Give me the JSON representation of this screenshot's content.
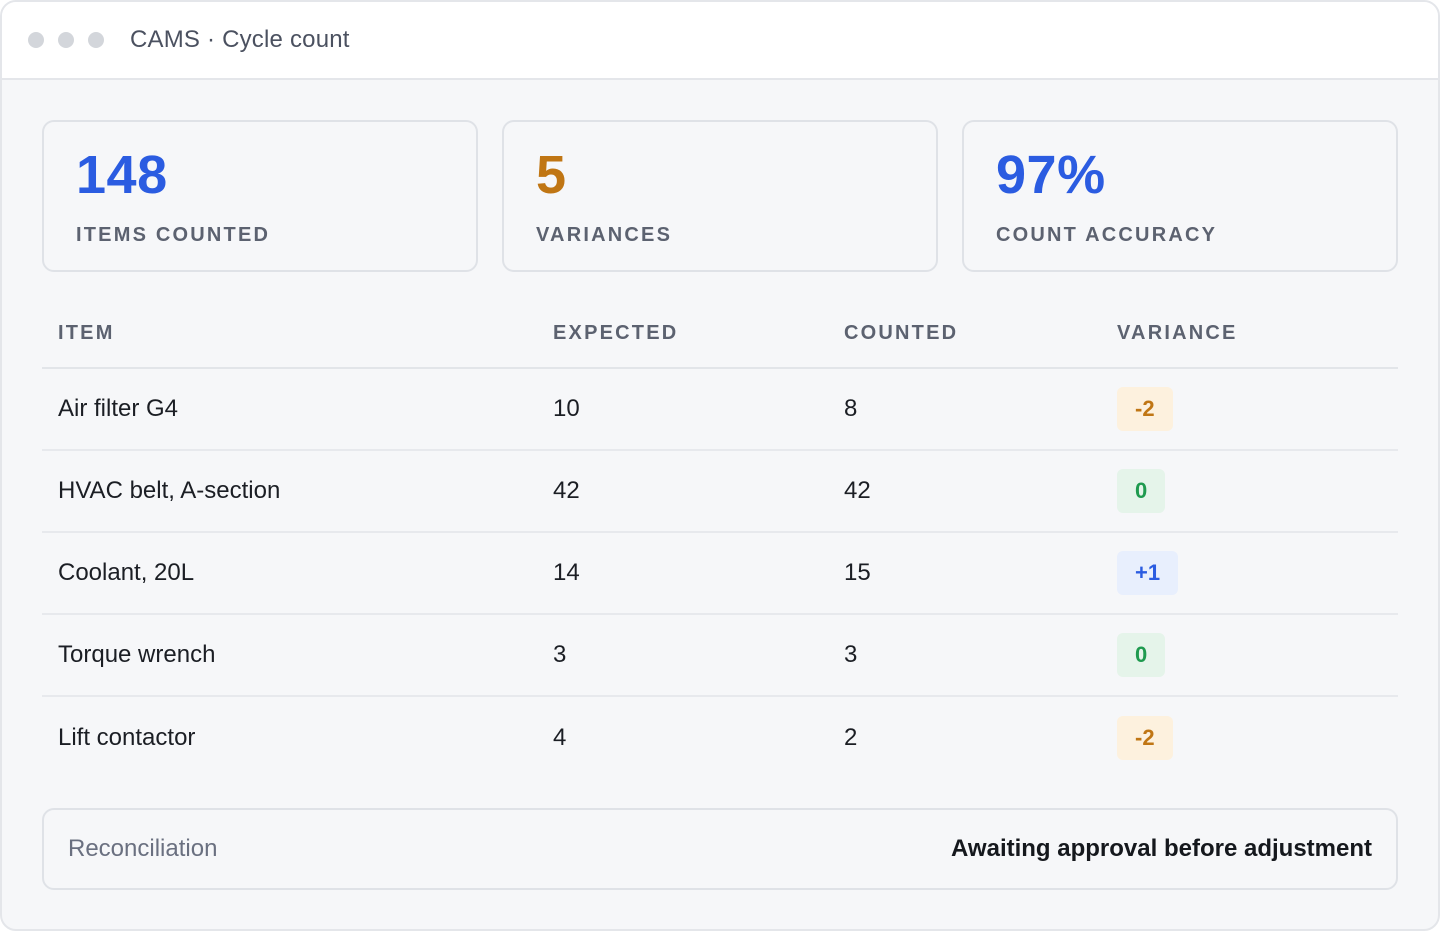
{
  "window": {
    "title": "CAMS · Cycle count"
  },
  "stats": [
    {
      "value": "148",
      "label": "ITEMS COUNTED",
      "color": "#2b5ce1"
    },
    {
      "value": "5",
      "label": "VARIANCES",
      "color": "#c07614"
    },
    {
      "value": "97%",
      "label": "COUNT ACCURACY",
      "color": "#2b5ce1"
    }
  ],
  "table": {
    "headers": [
      "ITEM",
      "EXPECTED",
      "COUNTED",
      "VARIANCE"
    ],
    "rows": [
      {
        "item": "Air filter G4",
        "expected": "10",
        "counted": "8",
        "variance": "-2",
        "kind": "negative"
      },
      {
        "item": "HVAC belt, A-section",
        "expected": "42",
        "counted": "42",
        "variance": "0",
        "kind": "zero"
      },
      {
        "item": "Coolant, 20L",
        "expected": "14",
        "counted": "15",
        "variance": "+1",
        "kind": "positive"
      },
      {
        "item": "Torque wrench",
        "expected": "3",
        "counted": "3",
        "variance": "0",
        "kind": "zero"
      },
      {
        "item": "Lift contactor",
        "expected": "4",
        "counted": "2",
        "variance": "-2",
        "kind": "negative"
      }
    ]
  },
  "badge_colors": {
    "negative": {
      "bg": "#fdf1de",
      "fg": "#c07614"
    },
    "zero": {
      "bg": "#e5f4ea",
      "fg": "#1f9a4f"
    },
    "positive": {
      "bg": "#e8effd",
      "fg": "#2b5ce1"
    }
  },
  "reconciliation": {
    "label": "Reconciliation",
    "status": "Awaiting approval before adjustment"
  }
}
